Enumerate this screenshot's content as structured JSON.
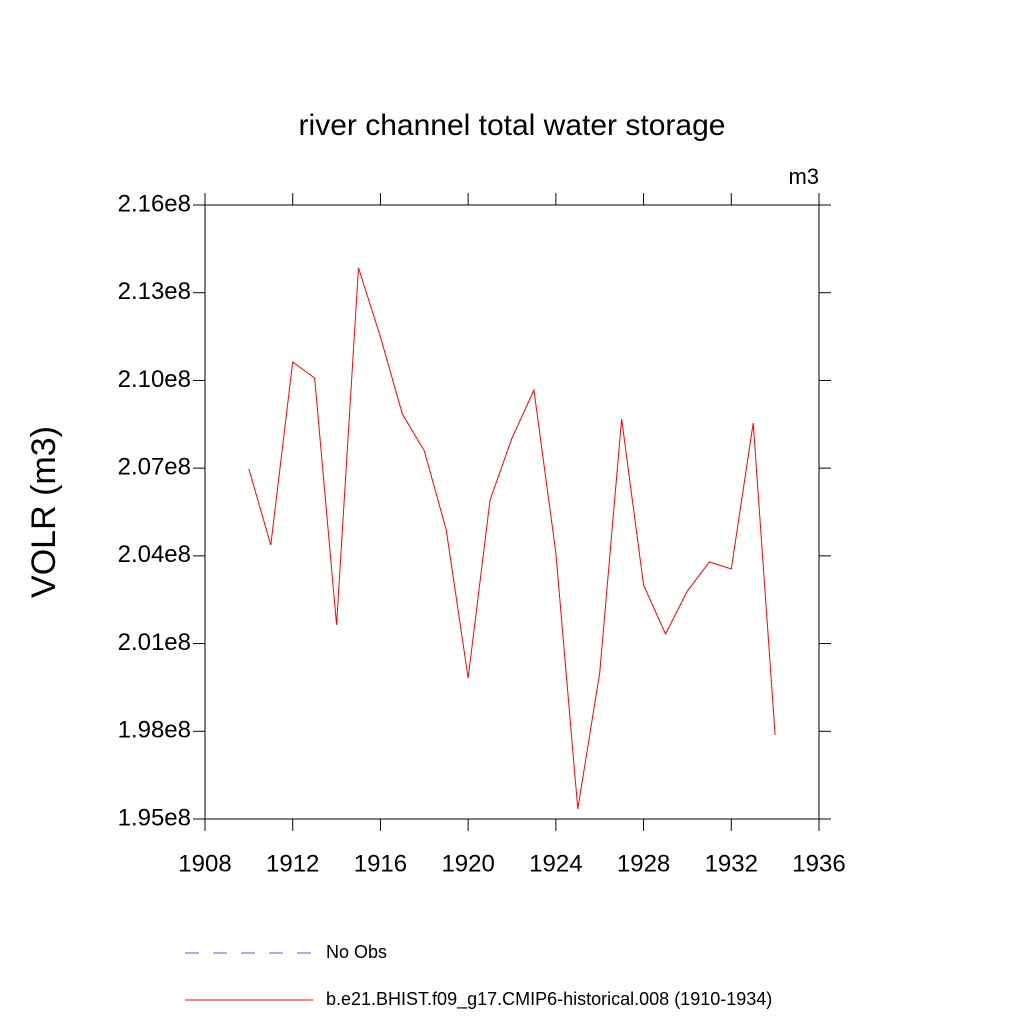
{
  "chart_data": {
    "type": "line",
    "title": "river channel total water storage",
    "units_label": "m3",
    "y_label": "VOLR  (m3)",
    "x": [
      1910,
      1911,
      1912,
      1913,
      1914,
      1915,
      1916,
      1917,
      1918,
      1919,
      1920,
      1921,
      1922,
      1923,
      1924,
      1925,
      1926,
      1927,
      1928,
      1929,
      1930,
      1931,
      1932,
      1933,
      1934
    ],
    "series": [
      {
        "name": "No Obs",
        "color": "#6a5acd",
        "dashed": true,
        "values": [
          null,
          null,
          null,
          null,
          null,
          null,
          null,
          null,
          null,
          null,
          null,
          null,
          null,
          null,
          null,
          null,
          null,
          null,
          null,
          null,
          null,
          null,
          null,
          null,
          null
        ]
      },
      {
        "name": "b.e21.BHIST.f09_g17.CMIP6-historical.008 (1910-1934)",
        "color": "#ff0000",
        "dashed": false,
        "values": [
          206970000,
          204370000,
          210630000,
          210080000,
          201640000,
          213850000,
          211490000,
          208850000,
          207590000,
          204890000,
          199820000,
          205910000,
          208030000,
          209670000,
          204100000,
          195340000,
          200000000,
          208680000,
          203000000,
          201330000,
          202800000,
          203790000,
          203550000,
          208540000,
          197870000
        ]
      }
    ],
    "xlim": [
      1908,
      1936
    ],
    "xticks": [
      1908,
      1912,
      1916,
      1920,
      1924,
      1928,
      1932,
      1936
    ],
    "ylim": [
      195000000,
      216000000
    ],
    "yticks": [
      {
        "value": 195000000,
        "label": "1.95e8"
      },
      {
        "value": 198000000,
        "label": "1.98e8"
      },
      {
        "value": 201000000,
        "label": "2.01e8"
      },
      {
        "value": 204000000,
        "label": "2.04e8"
      },
      {
        "value": 207000000,
        "label": "2.07e8"
      },
      {
        "value": 210000000,
        "label": "2.10e8"
      },
      {
        "value": 213000000,
        "label": "2.13e8"
      },
      {
        "value": 216000000,
        "label": "2.16e8"
      }
    ],
    "grid": false
  }
}
